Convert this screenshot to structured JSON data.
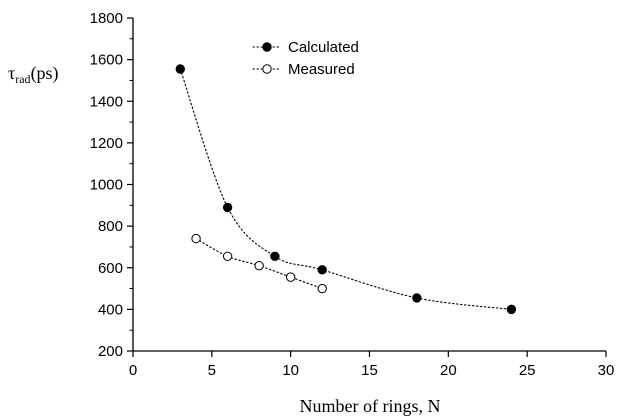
{
  "chart_data": {
    "type": "scatter",
    "xlabel": "Number of rings, N",
    "ylabel_symbol": "τ",
    "ylabel_subscript": "rad",
    "ylabel_unit": "(ps)",
    "xlim": [
      0,
      30
    ],
    "ylim": [
      200,
      1800
    ],
    "x_ticks": [
      0,
      5,
      10,
      15,
      20,
      25,
      30
    ],
    "y_ticks": [
      200,
      400,
      600,
      800,
      1000,
      1200,
      1400,
      1600,
      1800
    ],
    "grid": false,
    "legend_position": "top-center",
    "series": [
      {
        "name": "Calculated",
        "marker": "filled-circle",
        "line": "dotted",
        "x": [
          3,
          6,
          9,
          12,
          18,
          24
        ],
        "y": [
          1555,
          890,
          655,
          590,
          455,
          400
        ]
      },
      {
        "name": "Measured",
        "marker": "open-circle",
        "line": "dotted",
        "x": [
          4,
          6,
          8,
          10,
          12
        ],
        "y": [
          740,
          655,
          610,
          555,
          500
        ]
      }
    ]
  }
}
